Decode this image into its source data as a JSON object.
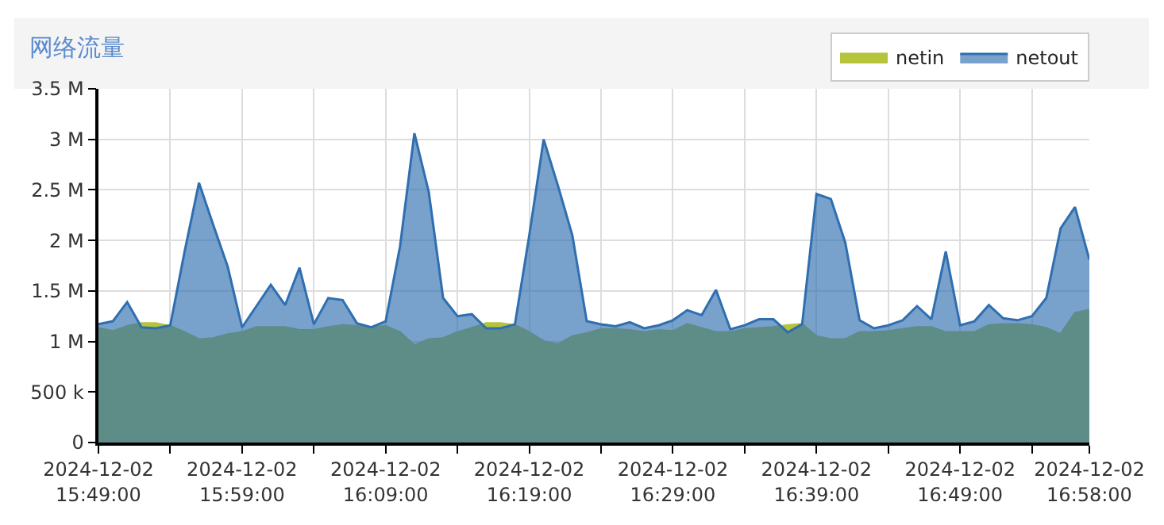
{
  "chart_data": {
    "type": "area",
    "title": "网络流量",
    "x": [
      "2024-12-02T15:49",
      "2024-12-02T15:50",
      "2024-12-02T15:51",
      "2024-12-02T15:52",
      "2024-12-02T15:53",
      "2024-12-02T15:54",
      "2024-12-02T15:55",
      "2024-12-02T15:56",
      "2024-12-02T15:57",
      "2024-12-02T15:58",
      "2024-12-02T15:59",
      "2024-12-02T16:00",
      "2024-12-02T16:01",
      "2024-12-02T16:02",
      "2024-12-02T16:03",
      "2024-12-02T16:04",
      "2024-12-02T16:05",
      "2024-12-02T16:06",
      "2024-12-02T16:07",
      "2024-12-02T16:08",
      "2024-12-02T16:09",
      "2024-12-02T16:10",
      "2024-12-02T16:11",
      "2024-12-02T16:12",
      "2024-12-02T16:13",
      "2024-12-02T16:14",
      "2024-12-02T16:15",
      "2024-12-02T16:16",
      "2024-12-02T16:17",
      "2024-12-02T16:18",
      "2024-12-02T16:19",
      "2024-12-02T16:20",
      "2024-12-02T16:21",
      "2024-12-02T16:22",
      "2024-12-02T16:23",
      "2024-12-02T16:24",
      "2024-12-02T16:25",
      "2024-12-02T16:26",
      "2024-12-02T16:27",
      "2024-12-02T16:28",
      "2024-12-02T16:29",
      "2024-12-02T16:30",
      "2024-12-02T16:31",
      "2024-12-02T16:32",
      "2024-12-02T16:33",
      "2024-12-02T16:34",
      "2024-12-02T16:35",
      "2024-12-02T16:36",
      "2024-12-02T16:37",
      "2024-12-02T16:38",
      "2024-12-02T16:39",
      "2024-12-02T16:40",
      "2024-12-02T16:41",
      "2024-12-02T16:42",
      "2024-12-02T16:43",
      "2024-12-02T16:44",
      "2024-12-02T16:45",
      "2024-12-02T16:46",
      "2024-12-02T16:47",
      "2024-12-02T16:48",
      "2024-12-02T16:49",
      "2024-12-02T16:50",
      "2024-12-02T16:51",
      "2024-12-02T16:52",
      "2024-12-02T16:53",
      "2024-12-02T16:54",
      "2024-12-02T16:55",
      "2024-12-02T16:56",
      "2024-12-02T16:57",
      "2024-12-02T16:58"
    ],
    "series": [
      {
        "name": "netin",
        "color": "#b5c43a",
        "values": [
          1130000,
          1100000,
          1150000,
          1180000,
          1180000,
          1150000,
          1090000,
          1020000,
          1030000,
          1070000,
          1090000,
          1140000,
          1140000,
          1140000,
          1110000,
          1110000,
          1140000,
          1160000,
          1150000,
          1140000,
          1150000,
          1090000,
          960000,
          1020000,
          1030000,
          1090000,
          1130000,
          1180000,
          1180000,
          1160000,
          1090000,
          1000000,
          970000,
          1050000,
          1080000,
          1120000,
          1120000,
          1110000,
          1090000,
          1110000,
          1100000,
          1170000,
          1130000,
          1090000,
          1090000,
          1120000,
          1130000,
          1140000,
          1160000,
          1170000,
          1050000,
          1020000,
          1020000,
          1090000,
          1090000,
          1100000,
          1120000,
          1140000,
          1140000,
          1090000,
          1090000,
          1090000,
          1160000,
          1170000,
          1170000,
          1160000,
          1130000,
          1070000,
          1280000,
          1310000
        ]
      },
      {
        "name": "netout",
        "color": "#2f6fb0",
        "values": [
          1170000,
          1200000,
          1390000,
          1140000,
          1130000,
          1160000,
          1890000,
          2570000,
          2150000,
          1740000,
          1140000,
          1350000,
          1560000,
          1360000,
          1730000,
          1170000,
          1430000,
          1410000,
          1180000,
          1140000,
          1200000,
          1940000,
          3060000,
          2480000,
          1430000,
          1250000,
          1270000,
          1130000,
          1130000,
          1170000,
          2050000,
          3000000,
          2540000,
          2050000,
          1200000,
          1170000,
          1150000,
          1190000,
          1130000,
          1160000,
          1210000,
          1310000,
          1260000,
          1510000,
          1120000,
          1160000,
          1220000,
          1220000,
          1090000,
          1170000,
          2460000,
          2410000,
          1980000,
          1210000,
          1130000,
          1160000,
          1210000,
          1350000,
          1220000,
          1890000,
          1160000,
          1200000,
          1360000,
          1230000,
          1210000,
          1250000,
          1430000,
          2120000,
          2330000,
          1810000
        ]
      }
    ],
    "xlim": [
      "2024-12-02T15:49",
      "2024-12-02T16:58"
    ],
    "xticks": [
      {
        "value": "2024-12-02T15:49",
        "label": "2024-12-02\n15:49:00"
      },
      {
        "value": "2024-12-02T15:54",
        "label": null
      },
      {
        "value": "2024-12-02T15:59",
        "label": "2024-12-02\n15:59:00"
      },
      {
        "value": "2024-12-02T16:04",
        "label": null
      },
      {
        "value": "2024-12-02T16:09",
        "label": "2024-12-02\n16:09:00"
      },
      {
        "value": "2024-12-02T16:14",
        "label": null
      },
      {
        "value": "2024-12-02T16:19",
        "label": "2024-12-02\n16:19:00"
      },
      {
        "value": "2024-12-02T16:24",
        "label": null
      },
      {
        "value": "2024-12-02T16:29",
        "label": "2024-12-02\n16:29:00"
      },
      {
        "value": "2024-12-02T16:34",
        "label": null
      },
      {
        "value": "2024-12-02T16:39",
        "label": "2024-12-02\n16:39:00"
      },
      {
        "value": "2024-12-02T16:44",
        "label": null
      },
      {
        "value": "2024-12-02T16:49",
        "label": "2024-12-02\n16:49:00"
      },
      {
        "value": "2024-12-02T16:54",
        "label": null
      },
      {
        "value": "2024-12-02T16:58",
        "label": "2024-12-02\n16:58:00"
      }
    ],
    "ylim": [
      0,
      3500000
    ],
    "yticks": [
      0,
      {
        "value": 500000,
        "label": "500 k"
      },
      {
        "value": 1000000,
        "label": "1 M"
      },
      {
        "value": 1500000,
        "label": "1.5 M"
      },
      {
        "value": 2000000,
        "label": "2 M"
      },
      {
        "value": 2500000,
        "label": "2.5 M"
      },
      {
        "value": 3000000,
        "label": "3 M"
      },
      {
        "value": 3500000,
        "label": "3.5 M"
      }
    ],
    "grid": true,
    "legend": "top right",
    "marker": "none",
    "line_style": "solid"
  }
}
